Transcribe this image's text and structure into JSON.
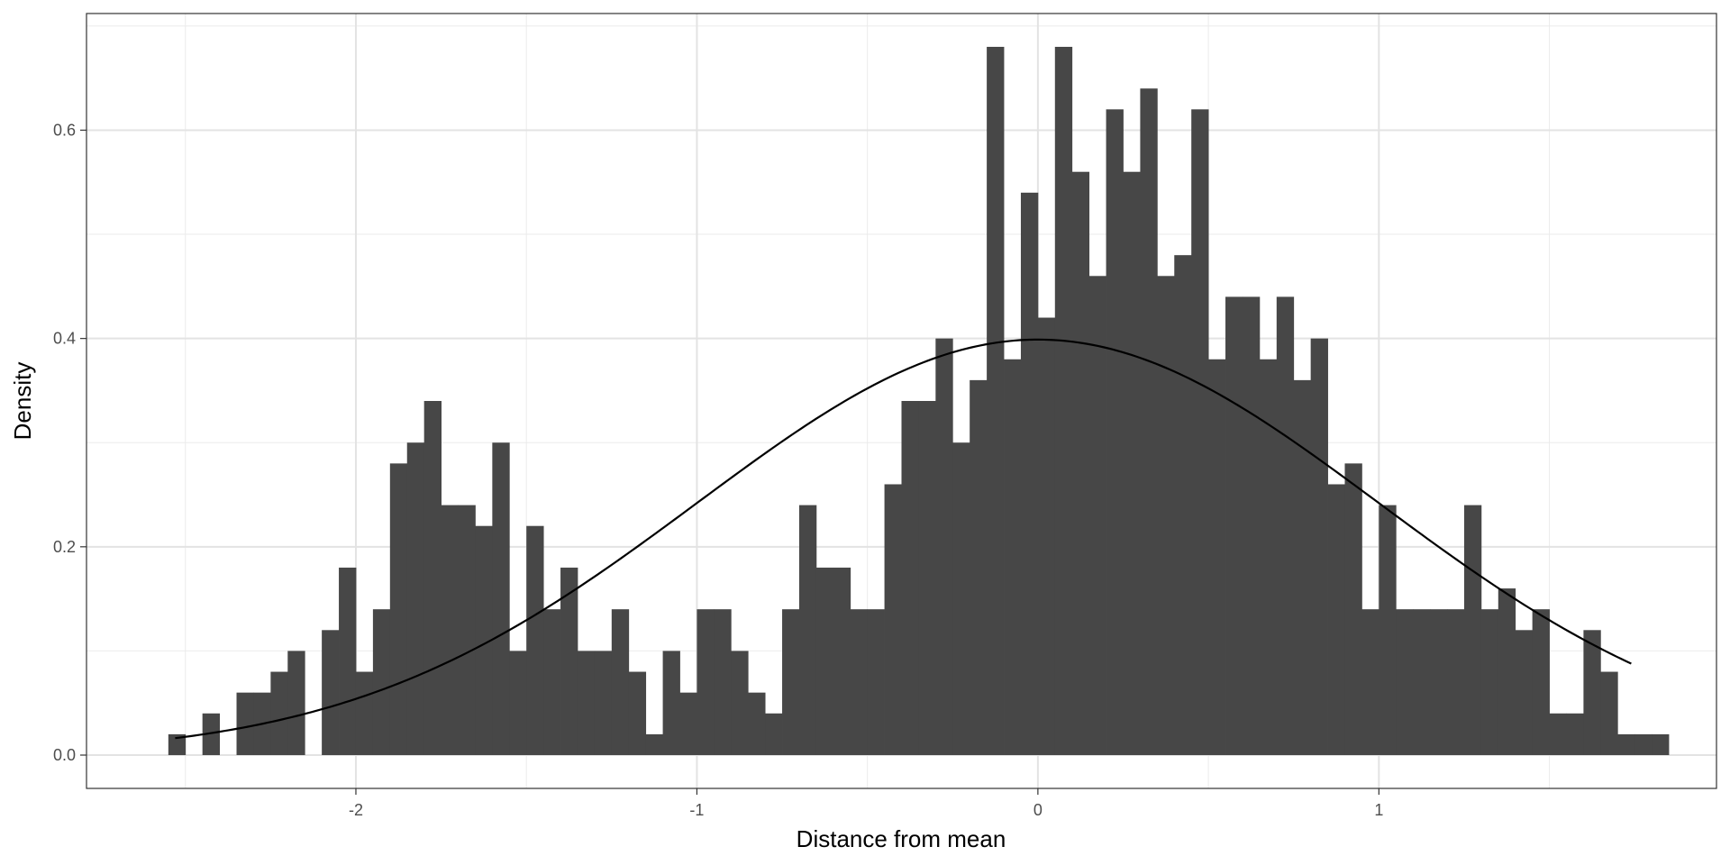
{
  "chart_data": {
    "type": "bar",
    "subtype": "histogram-with-density-curve",
    "title": "",
    "xlabel": "Distance from mean",
    "ylabel": "Density",
    "xlim": [
      -2.79,
      1.99
    ],
    "ylim": [
      -0.032,
      0.712
    ],
    "x_ticks": [
      -2,
      -1,
      0,
      1
    ],
    "x_tick_labels": [
      "-2",
      "-1",
      "0",
      "1"
    ],
    "y_ticks": [
      0.0,
      0.2,
      0.4,
      0.6
    ],
    "y_tick_labels": [
      "0.0",
      "0.2",
      "0.4",
      "0.6"
    ],
    "grid": true,
    "bin_width": 0.05,
    "bin_start": -2.55,
    "bar_color": "#474747",
    "curve_color": "#000000",
    "values": [
      0.02,
      0,
      0.04,
      0,
      0.06,
      0.06,
      0.08,
      0.1,
      0,
      0.12,
      0.18,
      0.08,
      0.14,
      0.28,
      0.3,
      0.34,
      0.24,
      0.24,
      0.22,
      0.3,
      0.1,
      0.22,
      0.14,
      0.18,
      0.1,
      0.1,
      0.14,
      0.08,
      0.02,
      0.1,
      0.06,
      0.14,
      0.14,
      0.1,
      0.06,
      0.04,
      0.14,
      0.24,
      0.18,
      0.18,
      0.14,
      0.14,
      0.26,
      0.34,
      0.34,
      0.4,
      0.3,
      0.36,
      0.68,
      0.38,
      0.54,
      0.42,
      0.68,
      0.56,
      0.46,
      0.62,
      0.56,
      0.64,
      0.46,
      0.48,
      0.62,
      0.38,
      0.44,
      0.44,
      0.38,
      0.44,
      0.36,
      0.4,
      0.26,
      0.28,
      0.14,
      0.24,
      0.14,
      0.14,
      0.14,
      0.14,
      0.24,
      0.14,
      0.16,
      0.12,
      0.14,
      0.04,
      0.04,
      0.12,
      0.08,
      0.02,
      0.02,
      0.02
    ],
    "series": [
      {
        "type": "line",
        "distribution": "normal",
        "mean": 0,
        "sd": 1,
        "x_range": [
          -2.53,
          1.74
        ]
      }
    ]
  }
}
